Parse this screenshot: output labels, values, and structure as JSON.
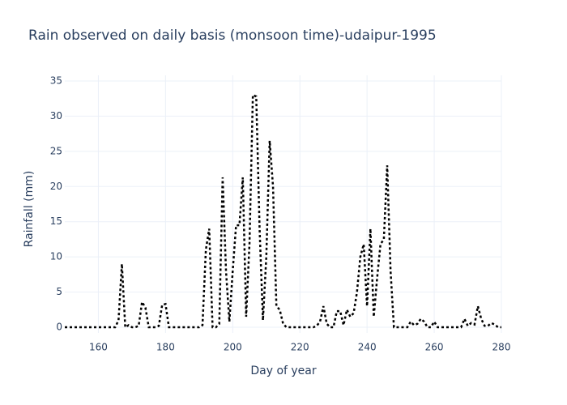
{
  "chart_data": {
    "type": "line",
    "title": "Rain observed on daily basis (monsoon time)-udaipur-1995",
    "x_label": "Day of year",
    "y_label": "Rainfall (mm)",
    "x": [
      150,
      151,
      152,
      153,
      154,
      155,
      156,
      157,
      158,
      159,
      160,
      161,
      162,
      163,
      164,
      165,
      166,
      167,
      168,
      169,
      170,
      171,
      172,
      173,
      174,
      175,
      176,
      177,
      178,
      179,
      180,
      181,
      182,
      183,
      184,
      185,
      186,
      187,
      188,
      189,
      190,
      191,
      192,
      193,
      194,
      195,
      196,
      197,
      198,
      199,
      200,
      201,
      202,
      203,
      204,
      205,
      206,
      207,
      208,
      209,
      210,
      211,
      212,
      213,
      214,
      215,
      216,
      217,
      218,
      219,
      220,
      221,
      222,
      223,
      224,
      225,
      226,
      227,
      228,
      229,
      230,
      231,
      232,
      233,
      234,
      235,
      236,
      237,
      238,
      239,
      240,
      241,
      242,
      243,
      244,
      245,
      246,
      247,
      248,
      249,
      250,
      251,
      252,
      253,
      254,
      255,
      256,
      257,
      258,
      259,
      260,
      261,
      262,
      263,
      264,
      265,
      266,
      267,
      268,
      269,
      270,
      271,
      272,
      273,
      274,
      275,
      276,
      277,
      278,
      279,
      280
    ],
    "values": [
      0,
      0,
      0,
      0,
      0,
      0,
      0,
      0,
      0,
      0,
      0,
      0,
      0,
      0,
      0,
      0,
      1,
      9,
      0,
      0.3,
      0,
      0,
      0.2,
      3.6,
      2.8,
      0,
      0,
      0,
      0.2,
      3.2,
      3.3,
      0,
      0,
      0,
      0,
      0,
      0,
      0,
      0,
      0,
      0,
      0.3,
      11,
      14,
      0,
      0,
      0.5,
      21.3,
      8,
      0.8,
      8,
      14.5,
      14.5,
      21.3,
      1.5,
      12,
      33,
      32.8,
      14,
      1,
      10,
      26.5,
      20,
      3,
      2.5,
      0.5,
      0,
      0,
      0,
      0,
      0,
      0,
      0,
      0,
      0,
      0.2,
      0.8,
      3,
      0.5,
      0,
      0,
      2.3,
      2.3,
      0.3,
      2.5,
      1.5,
      2,
      5,
      10,
      11.8,
      3,
      14,
      1.5,
      7,
      11.8,
      12.5,
      23,
      8,
      0,
      0,
      0,
      0,
      0,
      0.8,
      0.3,
      0.5,
      1.2,
      0.8,
      0,
      0,
      0.8,
      0,
      0,
      0,
      0,
      0,
      0,
      0,
      0,
      1.2,
      0.2,
      0.6,
      0.4,
      3,
      1.2,
      0.2,
      0.2,
      0.6,
      0.4,
      0,
      0
    ],
    "color": "#000000",
    "xlim": [
      150,
      280
    ],
    "ylim": [
      -0.8,
      35.8
    ],
    "xticks": [
      160,
      180,
      200,
      220,
      240,
      260,
      280
    ],
    "yticks": [
      0,
      5,
      10,
      15,
      20,
      25,
      30,
      35
    ],
    "grid": true
  }
}
